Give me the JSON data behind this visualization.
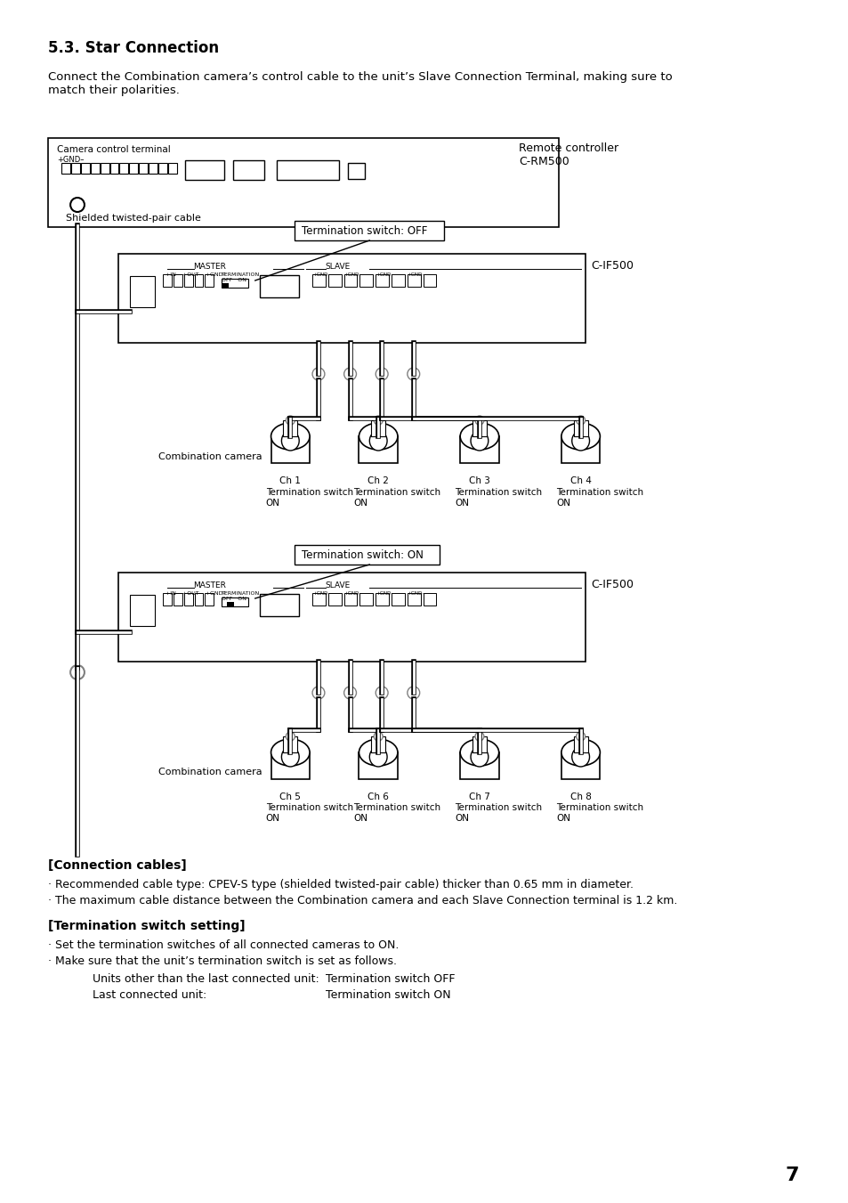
{
  "title": "5.3. Star Connection",
  "intro_text": "Connect the Combination camera’s control cable to the unit’s Slave Connection Terminal, making sure to\nmatch their polarities.",
  "background_color": "#ffffff",
  "text_color": "#000000",
  "page_number": "7",
  "connection_cables_header": "[Connection cables]",
  "connection_cables_bullets": [
    "· Recommended cable type: CPEV-S type (shielded twisted-pair cable) thicker than 0.65 mm in diameter.",
    "· The maximum cable distance between the Combination camera and each Slave Connection terminal is 1.2 km."
  ],
  "termination_header": "[Termination switch setting]",
  "termination_bullets": [
    "· Set the termination switches of all connected cameras to ON.",
    "· Make sure that the unit’s termination switch is set as follows."
  ],
  "termination_table": [
    [
      "Units other than the last connected unit:",
      "Termination switch OFF"
    ],
    [
      "Last connected unit:",
      "Termination switch ON"
    ]
  ],
  "diagram_labels": {
    "remote_controller": "Remote controller\nC-RM500",
    "camera_control_terminal": "Camera control terminal",
    "shielded_cable": "Shielded twisted-pair cable",
    "term_off": "Termination switch: OFF",
    "term_on": "Termination switch: ON",
    "cif500": "C-IF500",
    "combination_camera": "Combination camera",
    "ch_labels": [
      "Ch 1",
      "Ch 2",
      "Ch 3",
      "Ch 4",
      "Ch 5",
      "Ch 6",
      "Ch 7",
      "Ch 8"
    ],
    "term_switch_on": "Termination switch\nON",
    "master": "MASTER",
    "slave": "SLAVE"
  }
}
